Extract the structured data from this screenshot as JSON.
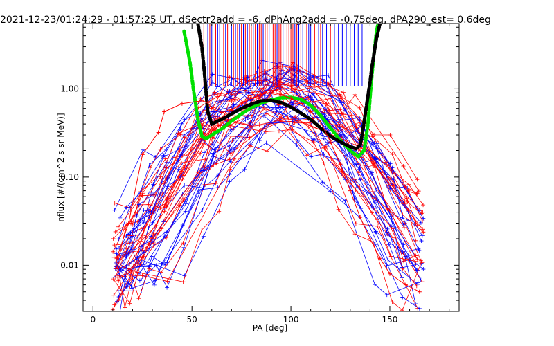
{
  "chart_data": {
    "type": "line",
    "title": "2021-12-23/01:24:29 - 01:57:25 UT, dSectr2add = -6, dPhAng2add = -0.75deg, dPA290_est=   0.6deg",
    "xlabel": "PA [deg]",
    "ylabel": "nflux [#/(cm^2 s sr MeV)]",
    "xlim": [
      -5,
      185
    ],
    "ylim": [
      0.003,
      5.5
    ],
    "yscale": "log",
    "xticks": [
      0,
      50,
      100,
      150
    ],
    "yticks": [
      0.01,
      0.1,
      1.0
    ],
    "ytick_labels": [
      "0.01",
      "0.10",
      "1.00"
    ],
    "grid": false,
    "colors": {
      "red": "#ff0000",
      "blue": "#0000ff",
      "green": "#00e000",
      "black": "#000000"
    },
    "series": [
      {
        "color": "green",
        "style": "thick-dashed",
        "x": [
          46,
          49,
          51,
          53,
          55,
          57,
          60,
          65,
          70,
          75,
          80,
          85,
          90,
          95,
          100,
          105,
          110,
          115,
          120,
          125,
          130,
          134,
          137,
          139,
          140,
          141,
          142,
          143,
          144
        ],
        "y": [
          4.5,
          2.0,
          0.9,
          0.45,
          0.29,
          0.27,
          0.3,
          0.35,
          0.43,
          0.52,
          0.61,
          0.69,
          0.75,
          0.79,
          0.8,
          0.76,
          0.65,
          0.5,
          0.36,
          0.26,
          0.2,
          0.17,
          0.2,
          0.4,
          0.8,
          1.5,
          2.5,
          4.0,
          5.5
        ]
      },
      {
        "color": "black",
        "style": "thick-dashed",
        "x": [
          53,
          55,
          56,
          57,
          58,
          60,
          62,
          65,
          70,
          75,
          80,
          85,
          90,
          95,
          100,
          105,
          110,
          115,
          120,
          125,
          130,
          133,
          135,
          136,
          138,
          140,
          141,
          142,
          143,
          145
        ],
        "y": [
          5.5,
          3.0,
          1.8,
          1.0,
          0.55,
          0.4,
          0.42,
          0.45,
          0.52,
          0.6,
          0.67,
          0.73,
          0.74,
          0.7,
          0.62,
          0.53,
          0.45,
          0.36,
          0.29,
          0.25,
          0.22,
          0.21,
          0.23,
          0.3,
          0.6,
          1.2,
          1.8,
          2.5,
          3.5,
          5.5
        ]
      },
      {
        "color": "red",
        "style": "thin-crosses",
        "x": [
          12,
          18,
          25,
          33,
          36,
          45,
          55,
          58,
          60,
          65,
          70,
          75,
          80,
          85,
          90,
          95,
          100,
          105,
          110,
          115,
          120,
          125,
          130,
          135,
          140,
          145,
          150,
          158,
          165
        ],
        "y": [
          0.012,
          0.03,
          0.18,
          0.32,
          0.55,
          0.68,
          0.73,
          0.7,
          0.6,
          0.54,
          0.58,
          0.68,
          0.78,
          0.86,
          0.92,
          0.86,
          0.78,
          0.68,
          0.55,
          0.42,
          0.25,
          0.14,
          0.07,
          0.035,
          0.02,
          0.012,
          0.008,
          0.006,
          0.005
        ]
      }
    ],
    "ticks_x": [
      55,
      56,
      58,
      59,
      60,
      62,
      63,
      64,
      66,
      67,
      68,
      70,
      71,
      72,
      73,
      74,
      75,
      76,
      77,
      78,
      79,
      80,
      81,
      82,
      83,
      84,
      85,
      86,
      87,
      88,
      89,
      90,
      91,
      92,
      93,
      94,
      95,
      96,
      97,
      98,
      99,
      100,
      101,
      102,
      103,
      104,
      105,
      106,
      108,
      109,
      110,
      112,
      114,
      115,
      116,
      118,
      120,
      122,
      124,
      126,
      128,
      130,
      132,
      134,
      136
    ],
    "ticks_color": [
      "blue",
      "red",
      "blue",
      "red",
      "blue",
      "red",
      "blue",
      "blue",
      "red",
      "blue",
      "red",
      "blue",
      "red",
      "blue",
      "red",
      "blue",
      "red",
      "blue",
      "red",
      "blue",
      "red",
      "red",
      "blue",
      "red",
      "blue",
      "red",
      "red",
      "blue",
      "red",
      "red",
      "blue",
      "red",
      "red",
      "red",
      "blue",
      "red",
      "red",
      "blue",
      "red",
      "red",
      "red",
      "red",
      "red",
      "blue",
      "red",
      "blue",
      "red",
      "blue",
      "red",
      "blue",
      "blue",
      "red",
      "blue",
      "red",
      "blue",
      "blue",
      "red",
      "blue",
      "blue",
      "blue",
      "blue",
      "blue",
      "blue",
      "blue",
      "blue"
    ]
  }
}
